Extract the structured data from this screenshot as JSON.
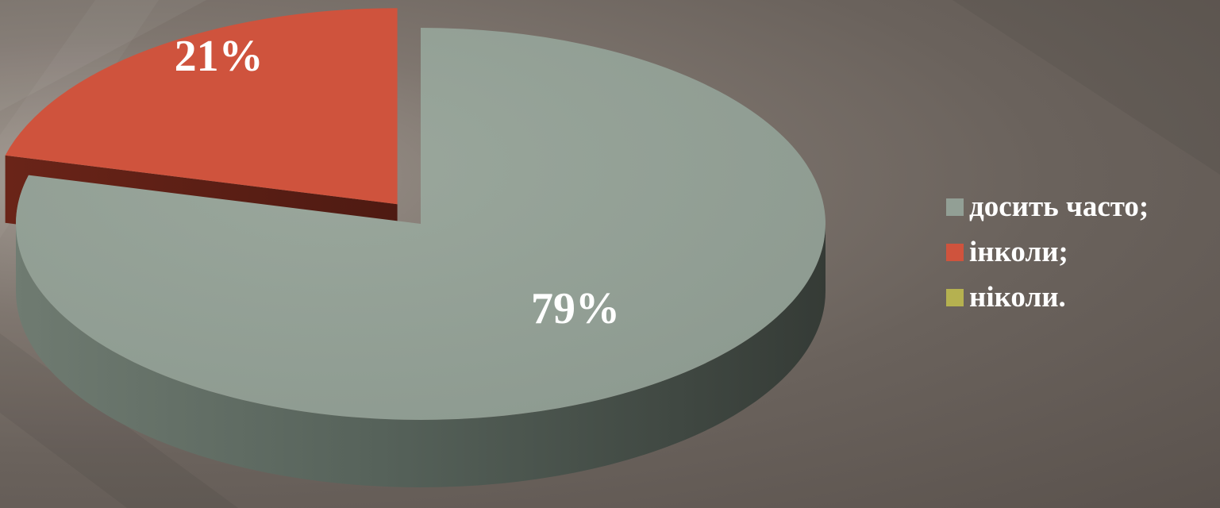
{
  "chart_data": {
    "type": "pie",
    "style": "3d-exploded",
    "categories": [
      "досить часто;",
      "інколи;",
      "ніколи."
    ],
    "values": [
      79,
      21,
      0
    ],
    "data_labels": [
      "79%",
      "21%",
      ""
    ],
    "colors": [
      "#929f95",
      "#cf533d",
      "#b5b150"
    ],
    "legend_position": "right"
  }
}
